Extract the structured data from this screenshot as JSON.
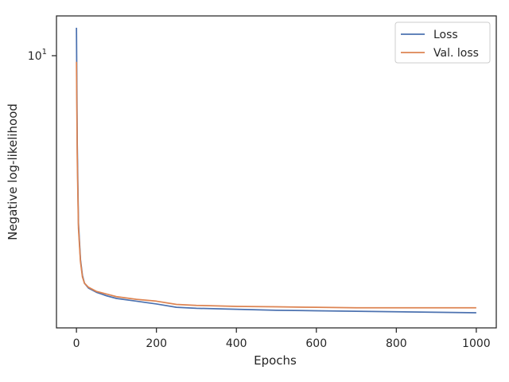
{
  "chart_data": {
    "type": "line",
    "title": "",
    "xlabel": "Epochs",
    "ylabel": "Negative log-likelihood",
    "xlim": [
      -50,
      1050
    ],
    "ylim": [
      1.05,
      13.9
    ],
    "yscale": "log",
    "grid": false,
    "legend_position": "top-right",
    "x_ticks": [
      {
        "value": 0,
        "label": "0"
      },
      {
        "value": 200,
        "label": "200"
      },
      {
        "value": 400,
        "label": "400"
      },
      {
        "value": 600,
        "label": "600"
      },
      {
        "value": 800,
        "label": "800"
      },
      {
        "value": 1000,
        "label": "1000"
      }
    ],
    "y_ticks": [
      {
        "value": 10,
        "label_base": "10",
        "label_exp": "1"
      }
    ],
    "x": [
      0,
      2,
      5,
      10,
      15,
      20,
      30,
      50,
      75,
      100,
      150,
      200,
      250,
      300,
      400,
      500,
      600,
      700,
      800,
      900,
      1000
    ],
    "series": [
      {
        "name": "Loss",
        "color": "#4c72b0",
        "values": [
          12.6,
          4.8,
          2.5,
          1.85,
          1.62,
          1.52,
          1.46,
          1.41,
          1.37,
          1.34,
          1.31,
          1.28,
          1.245,
          1.235,
          1.225,
          1.215,
          1.21,
          1.205,
          1.2,
          1.195,
          1.19
        ]
      },
      {
        "name": "Val. loss",
        "color": "#dd8452",
        "values": [
          9.5,
          4.3,
          2.4,
          1.82,
          1.6,
          1.52,
          1.47,
          1.42,
          1.39,
          1.36,
          1.33,
          1.31,
          1.275,
          1.265,
          1.255,
          1.25,
          1.245,
          1.24,
          1.24,
          1.24,
          1.24
        ]
      }
    ]
  }
}
